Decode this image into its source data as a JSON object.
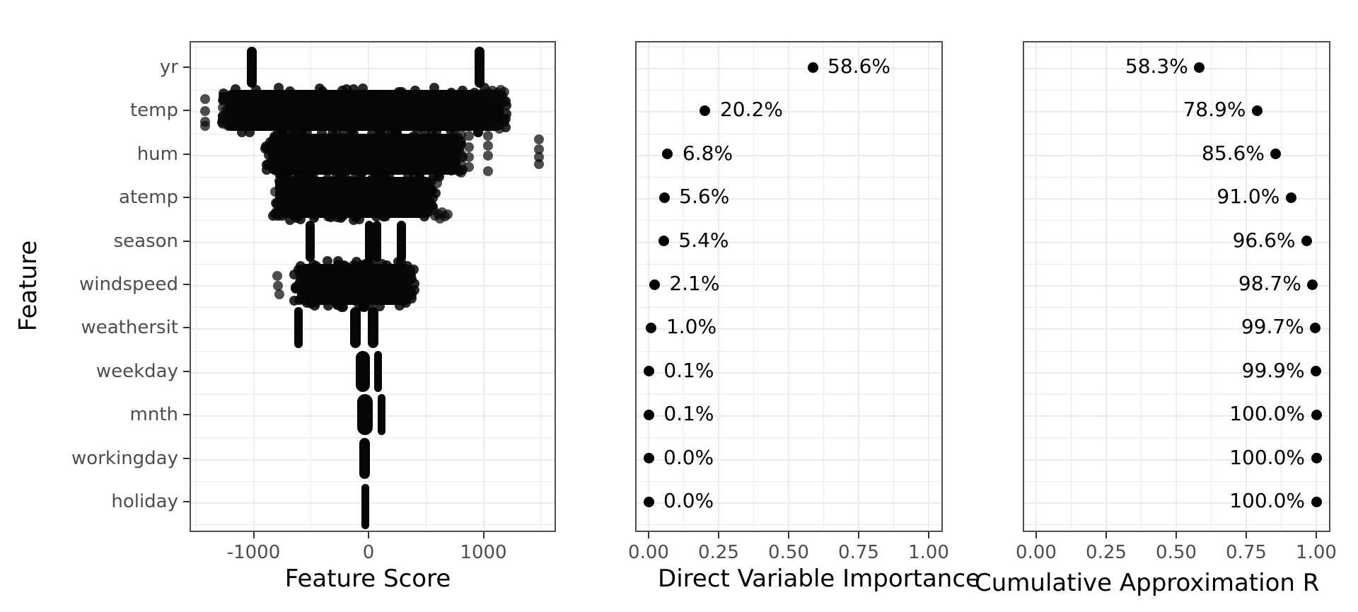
{
  "figure": {
    "background": "#ffffff"
  },
  "colors": {
    "grid": "#EBEBEB",
    "panel_border": "#4D4D4D",
    "tick_mark": "#333333",
    "tick_label": "#4D4D4D",
    "text": "#000000",
    "point": "#000000"
  },
  "y_axis": {
    "title": "Feature"
  },
  "chart_data": [
    {
      "type": "scatter",
      "subtype": "jittered-feature-scores",
      "xlabel": "Feature Score",
      "ylabel": "Feature",
      "categories": [
        "yr",
        "temp",
        "hum",
        "atemp",
        "season",
        "windspeed",
        "weathersit",
        "weekday",
        "mnth",
        "workingday",
        "holiday"
      ],
      "xticks": {
        "values": [
          -1000,
          0,
          1000
        ],
        "labels": [
          "-1000",
          "0",
          "1000"
        ]
      },
      "xminor": [
        -1500,
        -500,
        500,
        1500
      ],
      "xrange": [
        -1557,
        1631
      ],
      "grid": true,
      "distributions": [
        {
          "feature": "yr",
          "bars": [
            {
              "v": -1015,
              "w": 14
            },
            {
              "v": 965,
              "w": 14
            }
          ],
          "bands": [],
          "outliers": []
        },
        {
          "feature": "temp",
          "bars": [],
          "bands": [
            {
              "from": -1225,
              "to": 1150
            }
          ],
          "outliers": [
            {
              "v": -1422,
              "dy": -16
            },
            {
              "v": -1422,
              "dy": 1
            },
            {
              "v": -1422,
              "dy": 16
            },
            {
              "v": -1422,
              "dy": 22
            },
            {
              "v": -1268,
              "dy": -14
            },
            {
              "v": -1268,
              "dy": -4
            },
            {
              "v": -1268,
              "dy": 9
            },
            {
              "v": -1268,
              "dy": 19
            },
            {
              "v": 1045,
              "dy": -25
            },
            {
              "v": 1075,
              "dy": -28
            },
            {
              "v": 1092,
              "dy": -14
            },
            {
              "v": 1120,
              "dy": -25
            },
            {
              "v": 1152,
              "dy": -29
            },
            {
              "v": 1180,
              "dy": -26
            },
            {
              "v": 1180,
              "dy": -12
            },
            {
              "v": 1062,
              "dy": 15
            },
            {
              "v": 1100,
              "dy": 21
            },
            {
              "v": 1140,
              "dy": 26
            }
          ]
        },
        {
          "feature": "hum",
          "bars": [],
          "bands": [
            {
              "from": -849,
              "to": 775
            }
          ],
          "outliers": [
            {
              "v": 806,
              "dy": -28
            },
            {
              "v": 806,
              "dy": -14
            },
            {
              "v": 806,
              "dy": 0
            },
            {
              "v": 806,
              "dy": 14
            },
            {
              "v": 806,
              "dy": 26
            },
            {
              "v": 872,
              "dy": -26
            },
            {
              "v": 872,
              "dy": -10
            },
            {
              "v": 872,
              "dy": 4
            },
            {
              "v": 872,
              "dy": 18
            },
            {
              "v": 1040,
              "dy": -26
            },
            {
              "v": 1040,
              "dy": -12
            },
            {
              "v": 1040,
              "dy": 2
            },
            {
              "v": 1040,
              "dy": 24
            },
            {
              "v": 1483,
              "dy": -21
            },
            {
              "v": 1483,
              "dy": -7
            },
            {
              "v": 1483,
              "dy": 4
            },
            {
              "v": 1483,
              "dy": 14
            }
          ]
        },
        {
          "feature": "atemp",
          "bars": [],
          "bands": [
            {
              "from": -787,
              "to": 529
            }
          ],
          "outliers": [
            {
              "v": -812,
              "dy": -8
            },
            {
              "v": -806,
              "dy": 8
            },
            {
              "v": -798,
              "dy": 20
            },
            {
              "v": 552,
              "dy": -24
            },
            {
              "v": 566,
              "dy": 18
            },
            {
              "v": 580,
              "dy": 26
            },
            {
              "v": 594,
              "dy": -20
            },
            {
              "v": 612,
              "dy": 24
            },
            {
              "v": 622,
              "dy": 30
            },
            {
              "v": 640,
              "dy": 21
            },
            {
              "v": 662,
              "dy": 27
            },
            {
              "v": 688,
              "dy": 24
            }
          ]
        },
        {
          "feature": "season",
          "bars": [
            {
              "v": -510,
              "w": 13
            },
            {
              "v": 8,
              "w": 12
            },
            {
              "v": 76,
              "w": 12
            },
            {
              "v": 289,
              "w": 13
            }
          ],
          "bands": [],
          "outliers": []
        },
        {
          "feature": "windspeed",
          "bars": [],
          "bands": [
            {
              "from": -600,
              "to": 350
            }
          ],
          "outliers": [
            {
              "v": -792,
              "dy": -12
            },
            {
              "v": -786,
              "dy": 2
            },
            {
              "v": -776,
              "dy": 14
            },
            {
              "v": 360,
              "dy": -20
            },
            {
              "v": 364,
              "dy": -6
            }
          ]
        },
        {
          "feature": "weathersit",
          "bars": [
            {
              "v": -609,
              "w": 12
            },
            {
              "v": -111,
              "w": 15
            },
            {
              "v": 43,
              "w": 15
            }
          ],
          "bands": [],
          "outliers": []
        },
        {
          "feature": "weekday",
          "bars": [
            {
              "v": -49,
              "w": 20
            },
            {
              "v": 80,
              "w": 11
            }
          ],
          "bands": [],
          "outliers": []
        },
        {
          "feature": "mnth",
          "bars": [
            {
              "v": -31,
              "w": 22
            },
            {
              "v": 111,
              "w": 11
            }
          ],
          "bands": [],
          "outliers": []
        },
        {
          "feature": "workingday",
          "bars": [
            {
              "v": -34,
              "w": 15
            }
          ],
          "bands": [],
          "outliers": []
        },
        {
          "feature": "holiday",
          "bars": [
            {
              "v": -25,
              "w": 11,
              "h": 64,
              "dy": 4
            }
          ],
          "bands": [],
          "outliers": []
        }
      ]
    },
    {
      "type": "scatter",
      "subtype": "labelled-dots",
      "xlabel": "Direct Variable Importance",
      "xticks": {
        "values": [
          0,
          0.25,
          0.5,
          0.75,
          1
        ],
        "labels": [
          "0.00",
          "0.25",
          "0.50",
          "0.75",
          "1.00"
        ]
      },
      "xminor": [
        0.125,
        0.375,
        0.625,
        0.875
      ],
      "grid": true,
      "label_side": "right",
      "values": [
        0.586,
        0.202,
        0.068,
        0.056,
        0.054,
        0.021,
        0.01,
        0.001,
        0.001,
        0.0,
        0.0
      ],
      "labels": [
        "58.6%",
        "20.2%",
        "6.8%",
        "5.6%",
        "5.4%",
        "2.1%",
        "1.0%",
        "0.1%",
        "0.1%",
        "0.0%",
        "0.0%"
      ]
    },
    {
      "type": "scatter",
      "subtype": "labelled-dots",
      "xlabel": "Cumulative Approximation R",
      "xticks": {
        "values": [
          0,
          0.25,
          0.5,
          0.75,
          1
        ],
        "labels": [
          "0.00",
          "0.25",
          "0.50",
          "0.75",
          "1.00"
        ]
      },
      "xminor": [
        0.125,
        0.375,
        0.625,
        0.875
      ],
      "grid": true,
      "label_side": "left",
      "values": [
        0.583,
        0.789,
        0.856,
        0.91,
        0.966,
        0.987,
        0.997,
        0.999,
        1.0,
        1.0,
        1.0
      ],
      "labels": [
        "58.3%",
        "78.9%",
        "85.6%",
        "91.0%",
        "96.6%",
        "98.7%",
        "99.7%",
        "99.9%",
        "100.0%",
        "100.0%",
        "100.0%"
      ]
    }
  ]
}
